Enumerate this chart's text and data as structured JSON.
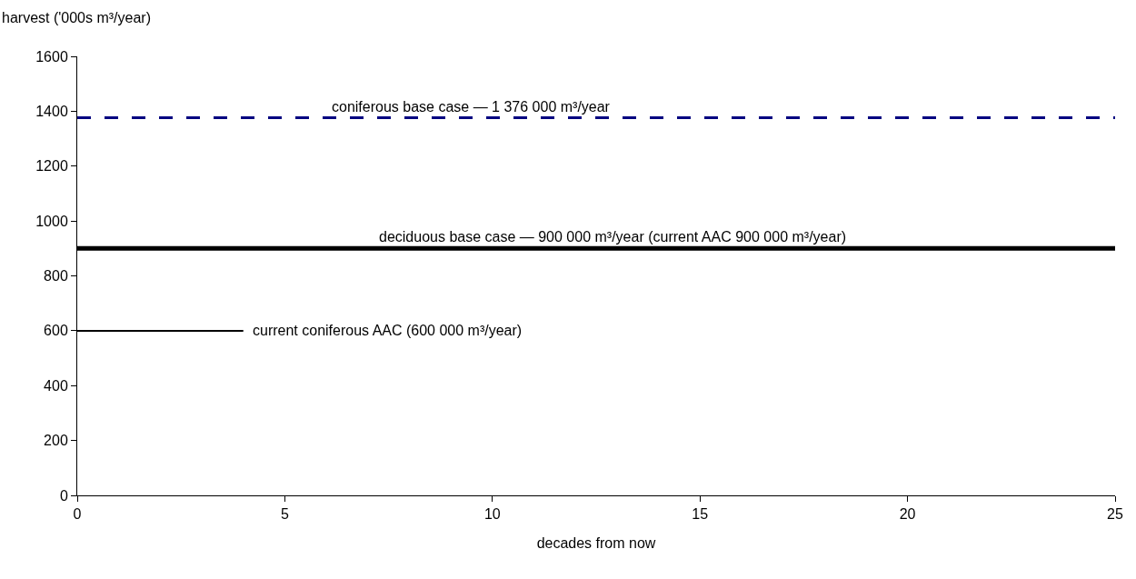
{
  "chart_data": {
    "type": "line",
    "xlabel": "decades from now",
    "ylabel": "harvest ('000s m³/year)",
    "series": [
      {
        "x": [
          0,
          25
        ],
        "values": [
          1376,
          1376
        ],
        "color": "#000080",
        "line_style": "dashed"
      },
      {
        "x": [
          0,
          25
        ],
        "values": [
          900,
          900
        ],
        "color": "#000000",
        "line_style": "solid"
      },
      {
        "x": [
          0,
          4
        ],
        "values": [
          600,
          600
        ],
        "color": "#000000",
        "line_style": "solid"
      }
    ],
    "annotations": [
      {
        "text": "coniferous base case — 1 376 000 m³/year",
        "x": 9.5,
        "y": 1376
      },
      {
        "text": "deciduous base case — 900 000 m³/year (current AAC 900 000 m³/year)",
        "x": 12.9,
        "y": 900
      },
      {
        "text": "current coniferous AAC (600 000 m³/year)",
        "x": 4,
        "y": 600
      }
    ],
    "xlim": [
      0,
      25
    ],
    "xticks": [
      0,
      5,
      10,
      15,
      20,
      25
    ],
    "ylim": [
      0,
      1600
    ],
    "yticks": [
      0,
      200,
      400,
      600,
      800,
      1000,
      1200,
      1400,
      1600
    ],
    "marker": "none"
  }
}
